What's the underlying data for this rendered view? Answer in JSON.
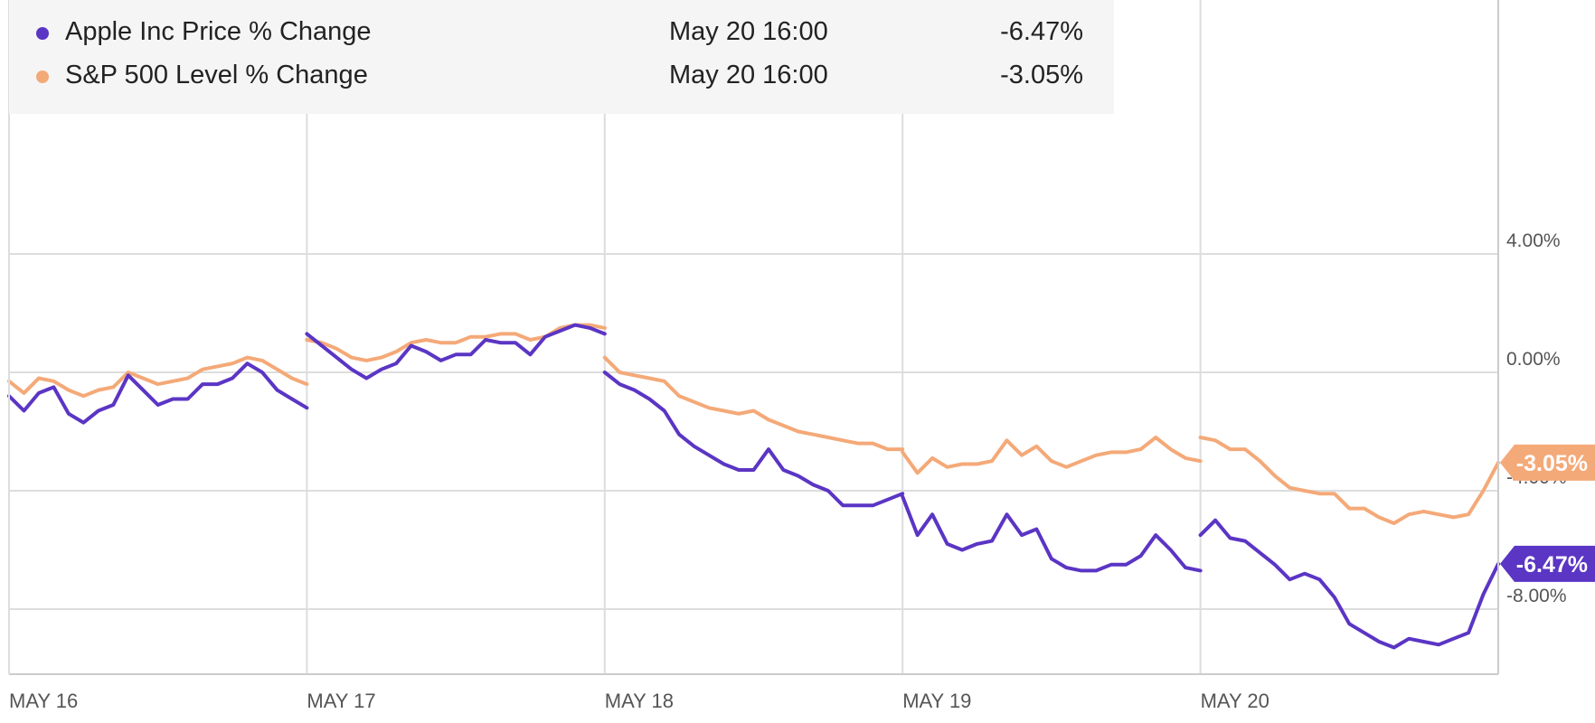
{
  "legend": [
    {
      "name": "Apple Inc Price % Change",
      "date": "May 20 16:00",
      "value": "-6.47%",
      "color": "#5b35c4"
    },
    {
      "name": "S&P 500 Level % Change",
      "date": "May 20 16:00",
      "value": "-3.05%",
      "color": "#f4a978"
    }
  ],
  "chart_data": {
    "type": "line",
    "x_ticks": [
      "MAY 16",
      "MAY 17",
      "MAY 18",
      "MAY 19",
      "MAY 20"
    ],
    "y_ticks": [
      "4.00%",
      "0.00%",
      "-4.00%",
      "-8.00%"
    ],
    "y_tick_values": [
      4,
      0,
      -4,
      -8
    ],
    "ylim": [
      -10.2,
      8
    ],
    "x_range": [
      0,
      5
    ],
    "grid": true,
    "legend_position": "top-left",
    "series": [
      {
        "name": "Apple Inc Price % Change",
        "color": "#5b35c4",
        "last_label": "-6.47%",
        "segments": [
          [
            [
              0.0,
              -0.8
            ],
            [
              0.05,
              -1.3
            ],
            [
              0.1,
              -0.7
            ],
            [
              0.15,
              -0.5
            ],
            [
              0.2,
              -1.4
            ],
            [
              0.25,
              -1.7
            ],
            [
              0.3,
              -1.3
            ],
            [
              0.35,
              -1.1
            ],
            [
              0.4,
              -0.1
            ],
            [
              0.45,
              -0.6
            ],
            [
              0.5,
              -1.1
            ],
            [
              0.55,
              -0.9
            ],
            [
              0.6,
              -0.9
            ],
            [
              0.65,
              -0.4
            ],
            [
              0.7,
              -0.4
            ],
            [
              0.75,
              -0.2
            ],
            [
              0.8,
              0.3
            ],
            [
              0.85,
              0.0
            ],
            [
              0.9,
              -0.6
            ],
            [
              0.95,
              -0.9
            ],
            [
              1.0,
              -1.2
            ]
          ],
          [
            [
              1.0,
              1.3
            ],
            [
              1.05,
              0.9
            ],
            [
              1.1,
              0.5
            ],
            [
              1.15,
              0.1
            ],
            [
              1.2,
              -0.2
            ],
            [
              1.25,
              0.1
            ],
            [
              1.3,
              0.3
            ],
            [
              1.35,
              0.9
            ],
            [
              1.4,
              0.7
            ],
            [
              1.45,
              0.4
            ],
            [
              1.5,
              0.6
            ],
            [
              1.55,
              0.6
            ],
            [
              1.6,
              1.1
            ],
            [
              1.65,
              1.0
            ],
            [
              1.7,
              1.0
            ],
            [
              1.75,
              0.6
            ],
            [
              1.8,
              1.2
            ],
            [
              1.85,
              1.4
            ],
            [
              1.9,
              1.6
            ],
            [
              1.95,
              1.5
            ],
            [
              2.0,
              1.3
            ]
          ],
          [
            [
              2.0,
              0.0
            ],
            [
              2.05,
              -0.4
            ],
            [
              2.1,
              -0.6
            ],
            [
              2.15,
              -0.9
            ],
            [
              2.2,
              -1.3
            ],
            [
              2.25,
              -2.1
            ],
            [
              2.3,
              -2.5
            ],
            [
              2.35,
              -2.8
            ],
            [
              2.4,
              -3.1
            ],
            [
              2.45,
              -3.3
            ],
            [
              2.5,
              -3.3
            ],
            [
              2.55,
              -2.6
            ],
            [
              2.6,
              -3.3
            ],
            [
              2.65,
              -3.5
            ],
            [
              2.7,
              -3.8
            ],
            [
              2.75,
              -4.0
            ],
            [
              2.8,
              -4.5
            ],
            [
              2.85,
              -4.5
            ],
            [
              2.9,
              -4.5
            ],
            [
              2.95,
              -4.3
            ],
            [
              3.0,
              -4.1
            ]
          ],
          [
            [
              3.0,
              -4.2
            ],
            [
              3.05,
              -5.5
            ],
            [
              3.1,
              -4.8
            ],
            [
              3.15,
              -5.8
            ],
            [
              3.2,
              -6.0
            ],
            [
              3.25,
              -5.8
            ],
            [
              3.3,
              -5.7
            ],
            [
              3.35,
              -4.8
            ],
            [
              3.4,
              -5.5
            ],
            [
              3.45,
              -5.3
            ],
            [
              3.5,
              -6.3
            ],
            [
              3.55,
              -6.6
            ],
            [
              3.6,
              -6.7
            ],
            [
              3.65,
              -6.7
            ],
            [
              3.7,
              -6.5
            ],
            [
              3.75,
              -6.5
            ],
            [
              3.8,
              -6.2
            ],
            [
              3.85,
              -5.5
            ],
            [
              3.9,
              -6.0
            ],
            [
              3.95,
              -6.6
            ],
            [
              4.0,
              -6.7
            ]
          ],
          [
            [
              4.0,
              -5.5
            ],
            [
              4.05,
              -5.0
            ],
            [
              4.1,
              -5.6
            ],
            [
              4.15,
              -5.7
            ],
            [
              4.2,
              -6.1
            ],
            [
              4.25,
              -6.5
            ],
            [
              4.3,
              -7.0
            ],
            [
              4.35,
              -6.8
            ],
            [
              4.4,
              -7.0
            ],
            [
              4.45,
              -7.6
            ],
            [
              4.5,
              -8.5
            ],
            [
              4.55,
              -8.8
            ],
            [
              4.6,
              -9.1
            ],
            [
              4.65,
              -9.3
            ],
            [
              4.7,
              -9.0
            ],
            [
              4.75,
              -9.1
            ],
            [
              4.8,
              -9.2
            ],
            [
              4.85,
              -9.0
            ],
            [
              4.9,
              -8.8
            ],
            [
              4.95,
              -7.5
            ],
            [
              5.0,
              -6.47
            ]
          ]
        ]
      },
      {
        "name": "S&P 500 Level % Change",
        "color": "#f4a978",
        "last_label": "-3.05%",
        "segments": [
          [
            [
              0.0,
              -0.3
            ],
            [
              0.05,
              -0.7
            ],
            [
              0.1,
              -0.2
            ],
            [
              0.15,
              -0.3
            ],
            [
              0.2,
              -0.6
            ],
            [
              0.25,
              -0.8
            ],
            [
              0.3,
              -0.6
            ],
            [
              0.35,
              -0.5
            ],
            [
              0.4,
              0.0
            ],
            [
              0.45,
              -0.2
            ],
            [
              0.5,
              -0.4
            ],
            [
              0.55,
              -0.3
            ],
            [
              0.6,
              -0.2
            ],
            [
              0.65,
              0.1
            ],
            [
              0.7,
              0.2
            ],
            [
              0.75,
              0.3
            ],
            [
              0.8,
              0.5
            ],
            [
              0.85,
              0.4
            ],
            [
              0.9,
              0.1
            ],
            [
              0.95,
              -0.2
            ],
            [
              1.0,
              -0.4
            ]
          ],
          [
            [
              1.0,
              1.1
            ],
            [
              1.05,
              1.0
            ],
            [
              1.1,
              0.8
            ],
            [
              1.15,
              0.5
            ],
            [
              1.2,
              0.4
            ],
            [
              1.25,
              0.5
            ],
            [
              1.3,
              0.7
            ],
            [
              1.35,
              1.0
            ],
            [
              1.4,
              1.1
            ],
            [
              1.45,
              1.0
            ],
            [
              1.5,
              1.0
            ],
            [
              1.55,
              1.2
            ],
            [
              1.6,
              1.2
            ],
            [
              1.65,
              1.3
            ],
            [
              1.7,
              1.3
            ],
            [
              1.75,
              1.1
            ],
            [
              1.8,
              1.2
            ],
            [
              1.85,
              1.5
            ],
            [
              1.9,
              1.6
            ],
            [
              1.95,
              1.6
            ],
            [
              2.0,
              1.5
            ]
          ],
          [
            [
              2.0,
              0.5
            ],
            [
              2.05,
              0.0
            ],
            [
              2.1,
              -0.1
            ],
            [
              2.15,
              -0.2
            ],
            [
              2.2,
              -0.3
            ],
            [
              2.25,
              -0.8
            ],
            [
              2.3,
              -1.0
            ],
            [
              2.35,
              -1.2
            ],
            [
              2.4,
              -1.3
            ],
            [
              2.45,
              -1.4
            ],
            [
              2.5,
              -1.3
            ],
            [
              2.55,
              -1.6
            ],
            [
              2.6,
              -1.8
            ],
            [
              2.65,
              -2.0
            ],
            [
              2.7,
              -2.1
            ],
            [
              2.75,
              -2.2
            ],
            [
              2.8,
              -2.3
            ],
            [
              2.85,
              -2.4
            ],
            [
              2.9,
              -2.4
            ],
            [
              2.95,
              -2.6
            ],
            [
              3.0,
              -2.6
            ]
          ],
          [
            [
              3.0,
              -2.7
            ],
            [
              3.05,
              -3.4
            ],
            [
              3.1,
              -2.9
            ],
            [
              3.15,
              -3.2
            ],
            [
              3.2,
              -3.1
            ],
            [
              3.25,
              -3.1
            ],
            [
              3.3,
              -3.0
            ],
            [
              3.35,
              -2.3
            ],
            [
              3.4,
              -2.8
            ],
            [
              3.45,
              -2.5
            ],
            [
              3.5,
              -3.0
            ],
            [
              3.55,
              -3.2
            ],
            [
              3.6,
              -3.0
            ],
            [
              3.65,
              -2.8
            ],
            [
              3.7,
              -2.7
            ],
            [
              3.75,
              -2.7
            ],
            [
              3.8,
              -2.6
            ],
            [
              3.85,
              -2.2
            ],
            [
              3.9,
              -2.6
            ],
            [
              3.95,
              -2.9
            ],
            [
              4.0,
              -3.0
            ]
          ],
          [
            [
              4.0,
              -2.2
            ],
            [
              4.05,
              -2.3
            ],
            [
              4.1,
              -2.6
            ],
            [
              4.15,
              -2.6
            ],
            [
              4.2,
              -3.0
            ],
            [
              4.25,
              -3.5
            ],
            [
              4.3,
              -3.9
            ],
            [
              4.35,
              -4.0
            ],
            [
              4.4,
              -4.1
            ],
            [
              4.45,
              -4.1
            ],
            [
              4.5,
              -4.6
            ],
            [
              4.55,
              -4.6
            ],
            [
              4.6,
              -4.9
            ],
            [
              4.65,
              -5.1
            ],
            [
              4.7,
              -4.8
            ],
            [
              4.75,
              -4.7
            ],
            [
              4.8,
              -4.8
            ],
            [
              4.85,
              -4.9
            ],
            [
              4.9,
              -4.8
            ],
            [
              4.95,
              -4.0
            ],
            [
              5.0,
              -3.05
            ]
          ]
        ]
      }
    ]
  }
}
